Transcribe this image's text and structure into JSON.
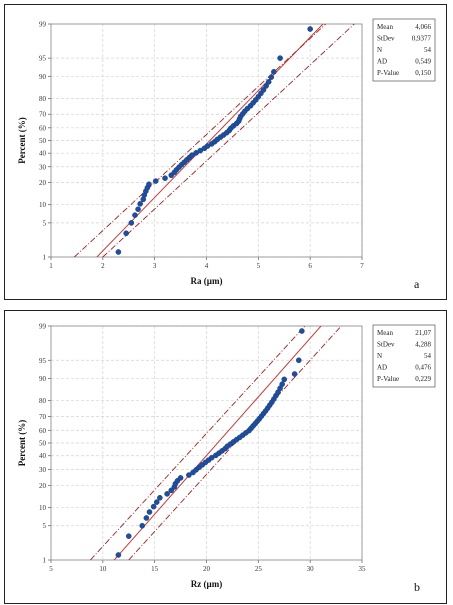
{
  "panels": [
    {
      "panel_label": "a",
      "stats": [
        {
          "label": "Mean",
          "value": "4,066"
        },
        {
          "label": "StDev",
          "value": "0,9377"
        },
        {
          "label": "N",
          "value": "54"
        },
        {
          "label": "AD",
          "value": "0,549"
        },
        {
          "label": "P-Value",
          "value": "0,150"
        }
      ]
    },
    {
      "panel_label": "b",
      "stats": [
        {
          "label": "Mean",
          "value": "21,07"
        },
        {
          "label": "StDev",
          "value": "4,288"
        },
        {
          "label": "N",
          "value": "54"
        },
        {
          "label": "AD",
          "value": "0,476"
        },
        {
          "label": "P-Value",
          "value": "0,229"
        }
      ]
    }
  ],
  "colors": {
    "points": "#1f4e9c",
    "fit_line": "#c23b3b",
    "ci_line": "#a02020",
    "grid": "#d4d4d4",
    "frame": "#222222"
  },
  "chart_data": [
    {
      "type": "scatter",
      "subtype": "normal probability plot",
      "xlabel": "Ra (µm)",
      "ylabel": "Percent (%)",
      "xlim": [
        1,
        7
      ],
      "ylim": [
        1,
        99
      ],
      "y_scale": "normal probability",
      "x_ticks": [
        1,
        2,
        3,
        4,
        5,
        6,
        7
      ],
      "y_ticks": [
        1,
        5,
        10,
        20,
        30,
        40,
        50,
        60,
        70,
        80,
        90,
        95,
        99
      ],
      "grid": true,
      "fit": {
        "mean": 4.066,
        "stdev": 0.9377
      },
      "ci_band": {
        "x_at_1pct_lower": 1.45,
        "x_at_1pct_upper": 2.0,
        "x_at_99pct_lower": 6.3,
        "x_at_99pct_upper": 6.85
      },
      "x": [
        2.3,
        2.45,
        2.55,
        2.62,
        2.68,
        2.72,
        2.78,
        2.8,
        2.83,
        2.86,
        2.89,
        3.02,
        3.2,
        3.32,
        3.38,
        3.42,
        3.47,
        3.52,
        3.57,
        3.62,
        3.67,
        3.72,
        3.8,
        3.88,
        3.96,
        4.02,
        4.1,
        4.16,
        4.21,
        4.27,
        4.33,
        4.39,
        4.44,
        4.47,
        4.52,
        4.58,
        4.62,
        4.64,
        4.66,
        4.7,
        4.74,
        4.79,
        4.85,
        4.9,
        4.95,
        5.0,
        5.05,
        5.1,
        5.15,
        5.2,
        5.25,
        5.3,
        5.42,
        6.0
      ],
      "y": [
        1.3,
        3.2,
        5.0,
        6.8,
        8.5,
        10.3,
        12.0,
        13.8,
        15.6,
        17.3,
        19.1,
        20.9,
        22.6,
        24.4,
        26.2,
        27.9,
        29.7,
        31.5,
        33.2,
        35.0,
        36.7,
        38.5,
        40.3,
        42.0,
        43.8,
        45.6,
        47.3,
        49.1,
        50.9,
        52.7,
        54.4,
        56.2,
        58.0,
        59.7,
        61.5,
        63.3,
        65.0,
        66.8,
        68.5,
        70.3,
        72.1,
        73.8,
        75.6,
        77.4,
        79.1,
        80.9,
        82.7,
        84.4,
        86.2,
        87.9,
        89.7,
        91.5,
        95.0,
        98.7
      ]
    },
    {
      "type": "scatter",
      "subtype": "normal probability plot",
      "xlabel": "Rz (µm)",
      "ylabel": "Percent (%)",
      "xlim": [
        5,
        35
      ],
      "ylim": [
        1,
        99
      ],
      "y_scale": "normal probability",
      "x_ticks": [
        5,
        10,
        15,
        20,
        25,
        30,
        35
      ],
      "y_ticks": [
        1,
        5,
        10,
        20,
        30,
        40,
        50,
        60,
        70,
        80,
        90,
        95,
        99
      ],
      "grid": true,
      "fit": {
        "mean": 21.07,
        "stdev": 4.288
      },
      "ci_band": {
        "x_at_1pct_lower": 8.8,
        "x_at_1pct_upper": 12.5,
        "x_at_99pct_lower": 29.5,
        "x_at_99pct_upper": 33.0
      },
      "x": [
        11.5,
        12.5,
        13.8,
        14.2,
        14.5,
        14.9,
        15.2,
        15.5,
        16.2,
        16.6,
        16.9,
        17.0,
        17.2,
        17.5,
        18.3,
        18.7,
        19.0,
        19.3,
        19.6,
        19.9,
        20.2,
        20.5,
        20.9,
        21.2,
        21.5,
        21.8,
        22.0,
        22.3,
        22.6,
        22.9,
        23.2,
        23.5,
        23.8,
        24.1,
        24.3,
        24.5,
        24.7,
        24.9,
        25.1,
        25.3,
        25.5,
        25.7,
        25.9,
        26.1,
        26.3,
        26.5,
        26.7,
        26.9,
        27.1,
        27.3,
        27.5,
        28.5,
        28.9,
        29.2
      ],
      "y": [
        1.3,
        3.2,
        5.0,
        6.8,
        8.5,
        10.3,
        12.0,
        13.8,
        15.6,
        17.3,
        19.1,
        20.9,
        22.6,
        24.4,
        26.2,
        27.9,
        29.7,
        31.5,
        33.2,
        35.0,
        36.7,
        38.5,
        40.3,
        42.0,
        43.8,
        45.6,
        47.3,
        49.1,
        50.9,
        52.7,
        54.4,
        56.2,
        58.0,
        59.7,
        61.5,
        63.3,
        65.0,
        66.8,
        68.5,
        70.3,
        72.1,
        73.8,
        75.6,
        77.4,
        79.1,
        80.9,
        82.7,
        84.4,
        86.2,
        87.9,
        89.7,
        91.5,
        95.0,
        98.7
      ]
    }
  ]
}
